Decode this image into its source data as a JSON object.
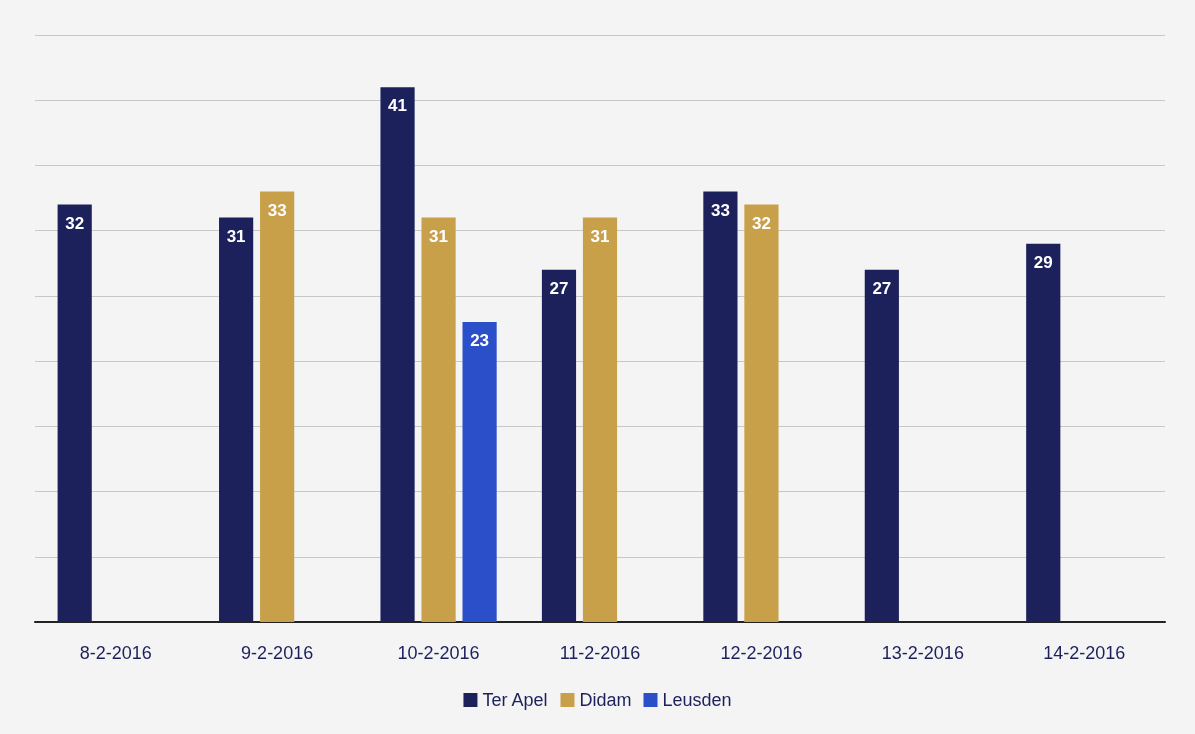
{
  "chart_data": {
    "type": "bar",
    "categories": [
      "8-2-2016",
      "9-2-2016",
      "10-2-2016",
      "11-2-2016",
      "12-2-2016",
      "13-2-2016",
      "14-2-2016"
    ],
    "series": [
      {
        "name": "Ter Apel",
        "color": "#1c215c",
        "values": [
          32,
          31,
          41,
          27,
          33,
          27,
          29
        ]
      },
      {
        "name": "Didam",
        "color": "#c9a04a",
        "values": [
          null,
          33,
          31,
          31,
          32,
          null,
          null
        ]
      },
      {
        "name": "Leusden",
        "color": "#2a4fc9",
        "values": [
          null,
          null,
          23,
          null,
          null,
          null,
          null
        ]
      }
    ],
    "ylim": [
      0,
      45
    ],
    "yticks": [
      {
        "value": 0,
        "label": null
      },
      {
        "value": 5,
        "label": null
      },
      {
        "value": 10,
        "label": null
      },
      {
        "value": 15,
        "label": null
      },
      {
        "value": 20,
        "label": null
      },
      {
        "value": 25,
        "label": null
      },
      {
        "value": 30,
        "label": null
      },
      {
        "value": 35,
        "label": null
      },
      {
        "value": 40,
        "label": null
      },
      {
        "value": 45,
        "label": null
      }
    ],
    "grid": "y",
    "legend": "bottom",
    "data_labels": true,
    "tick_labels": "x"
  }
}
